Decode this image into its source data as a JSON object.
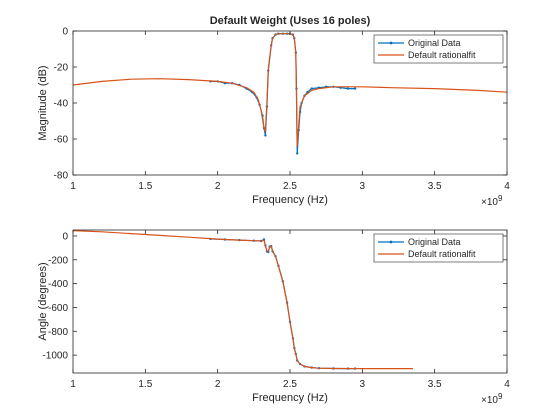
{
  "chart_data": [
    {
      "type": "line",
      "title": "Default Weight (Uses 16 poles)",
      "xlabel": "Frequency (Hz)",
      "ylabel": "Magnitude (dB)",
      "x_exponent_label": "×10",
      "x_exponent_power": "9",
      "xlim": [
        1,
        4
      ],
      "ylim": [
        -80,
        0
      ],
      "x_ticks": [
        "1",
        "1.5",
        "2",
        "2.5",
        "3",
        "3.5",
        "4"
      ],
      "y_ticks": [
        "0",
        "-20",
        "-40",
        "-60",
        "-80"
      ],
      "grid": false,
      "legend_position": "top-right",
      "series": [
        {
          "name": "Original Data",
          "color": "#0072BD",
          "marker": "point",
          "x": [
            1.95,
            2.0,
            2.05,
            2.1,
            2.15,
            2.2,
            2.24,
            2.27,
            2.29,
            2.31,
            2.32,
            2.33,
            2.34,
            2.35,
            2.37,
            2.38,
            2.4,
            2.42,
            2.45,
            2.48,
            2.5,
            2.52,
            2.53,
            2.54,
            2.545,
            2.55,
            2.56,
            2.57,
            2.58,
            2.6,
            2.62,
            2.65,
            2.7,
            2.75,
            2.8,
            2.85,
            2.9,
            2.95
          ],
          "values": [
            -28,
            -28,
            -29,
            -29,
            -30,
            -32,
            -34,
            -37,
            -41,
            -47,
            -54,
            -58,
            -42,
            -22,
            -8,
            -4,
            -2,
            -1.5,
            -1.5,
            -1.5,
            -1.5,
            -2,
            -4,
            -12,
            -32,
            -68,
            -55,
            -45,
            -40,
            -36,
            -34,
            -32,
            -31.5,
            -31,
            -31,
            -31.5,
            -32,
            -32
          ]
        },
        {
          "name": "Default rationalfit",
          "color": "#D95319",
          "marker": "none",
          "x": [
            1.0,
            1.2,
            1.4,
            1.6,
            1.8,
            2.0,
            2.1,
            2.2,
            2.25,
            2.28,
            2.3,
            2.32,
            2.33,
            2.34,
            2.35,
            2.37,
            2.38,
            2.4,
            2.42,
            2.45,
            2.48,
            2.5,
            2.52,
            2.53,
            2.54,
            2.55,
            2.56,
            2.57,
            2.6,
            2.65,
            2.7,
            2.8,
            3.0,
            3.2,
            3.5,
            3.8,
            4.0
          ],
          "values": [
            -30,
            -28,
            -26.8,
            -26.5,
            -27,
            -28,
            -29,
            -31.5,
            -34,
            -38,
            -44,
            -54,
            -56,
            -40,
            -21,
            -8,
            -4,
            -2,
            -1.5,
            -1.5,
            -1.5,
            -1.5,
            -2,
            -4,
            -12,
            -64,
            -52,
            -42,
            -36,
            -33,
            -32,
            -31,
            -31,
            -31.5,
            -32,
            -33,
            -34
          ]
        }
      ]
    },
    {
      "type": "line",
      "title": "",
      "xlabel": "Frequency (Hz)",
      "ylabel": "Angle (degrees)",
      "x_exponent_label": "×10",
      "x_exponent_power": "9",
      "xlim": [
        1,
        4
      ],
      "ylim": [
        -1150,
        50
      ],
      "x_ticks": [
        "1",
        "1.5",
        "2",
        "2.5",
        "3",
        "3.5",
        "4"
      ],
      "y_ticks": [
        "0",
        "-200",
        "-400",
        "-600",
        "-800",
        "-1000"
      ],
      "y_tick_values": [
        0,
        -200,
        -400,
        -600,
        -800,
        -1000
      ],
      "grid": false,
      "legend_position": "top-right",
      "series": [
        {
          "name": "Original Data",
          "color": "#0072BD",
          "marker": "point",
          "x": [
            1.95,
            2.05,
            2.15,
            2.25,
            2.3,
            2.32,
            2.33,
            2.34,
            2.35,
            2.36,
            2.37,
            2.38,
            2.4,
            2.42,
            2.45,
            2.48,
            2.5,
            2.52,
            2.53,
            2.54,
            2.55,
            2.57,
            2.6,
            2.65,
            2.7,
            2.8,
            2.9,
            2.95
          ],
          "values": [
            -25,
            -30,
            -35,
            -40,
            -42,
            -30,
            -80,
            -130,
            -135,
            -90,
            -85,
            -130,
            -170,
            -250,
            -380,
            -560,
            -720,
            -860,
            -940,
            -990,
            -1045,
            -1075,
            -1095,
            -1105,
            -1110,
            -1112,
            -1113,
            -1113
          ]
        },
        {
          "name": "Default rationalfit",
          "color": "#D95319",
          "marker": "none",
          "x": [
            1.0,
            1.2,
            1.4,
            1.6,
            1.8,
            1.95,
            2.05,
            2.15,
            2.25,
            2.3,
            2.32,
            2.33,
            2.34,
            2.35,
            2.36,
            2.37,
            2.38,
            2.4,
            2.42,
            2.45,
            2.48,
            2.5,
            2.52,
            2.53,
            2.54,
            2.55,
            2.57,
            2.6,
            2.65,
            2.7,
            2.8,
            3.0,
            3.35
          ],
          "values": [
            45,
            35,
            20,
            5,
            -10,
            -22,
            -30,
            -35,
            -40,
            -42,
            -35,
            -80,
            -125,
            -130,
            -90,
            -85,
            -125,
            -170,
            -250,
            -380,
            -560,
            -720,
            -860,
            -940,
            -990,
            -1045,
            -1075,
            -1095,
            -1105,
            -1110,
            -1112,
            -1113,
            -1113
          ]
        }
      ]
    }
  ]
}
